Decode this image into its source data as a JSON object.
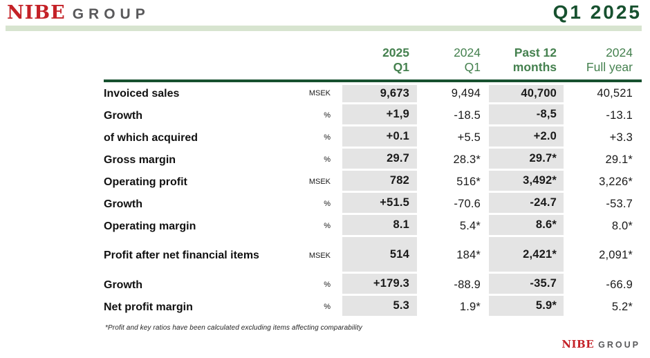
{
  "header": {
    "logo": {
      "brand": "NIBE",
      "suffix": "GROUP"
    },
    "title": "Q1 2025"
  },
  "table": {
    "columns": [
      {
        "line1": "2025",
        "line2": "Q1",
        "highlighted": true
      },
      {
        "line1": "2024",
        "line2": "Q1",
        "highlighted": false
      },
      {
        "line1": "Past 12",
        "line2": "months",
        "highlighted": true
      },
      {
        "line1": "2024",
        "line2": "Full year",
        "highlighted": false
      }
    ],
    "rows": [
      {
        "label": "Invoiced sales",
        "unit": "MSEK",
        "values": [
          "9,673",
          "9,494",
          "40,700",
          "40,521"
        ]
      },
      {
        "label": "Growth",
        "unit": "%",
        "values": [
          "+1,9",
          "-18.5",
          "-8,5",
          "-13.1"
        ]
      },
      {
        "label": "of which acquired",
        "unit": "%",
        "values": [
          "+0.1",
          "+5.5",
          "+2.0",
          "+3.3"
        ]
      },
      {
        "label": "Gross margin",
        "unit": "%",
        "values": [
          "29.7",
          "28.3*",
          "29.7*",
          "29.1*"
        ]
      },
      {
        "label": "Operating profit",
        "unit": "MSEK",
        "values": [
          "782",
          "516*",
          "3,492*",
          "3,226*"
        ]
      },
      {
        "label": "Growth",
        "unit": "%",
        "values": [
          "+51.5",
          "-70.6",
          "-24.7",
          "-53.7"
        ]
      },
      {
        "label": "Operating margin",
        "unit": "%",
        "values": [
          "8.1",
          "5.4*",
          "8.6*",
          "8.0*"
        ]
      },
      {
        "label": "Profit after net financial items",
        "unit": "MSEK",
        "values": [
          "514",
          "184*",
          "2,421*",
          "2,091*"
        ]
      },
      {
        "label": "Growth",
        "unit": "%",
        "values": [
          "+179.3",
          "-88.9",
          "-35.7",
          "-66.9"
        ]
      },
      {
        "label": "Net profit margin",
        "unit": "%",
        "values": [
          "5.3",
          "1.9*",
          "5.9*",
          "5.2*"
        ]
      }
    ]
  },
  "footnote": "*Profit and key ratios have been calculated excluding items affecting comparability",
  "footer": {
    "logo": {
      "brand": "NIBE",
      "suffix": "GROUP"
    }
  },
  "colors": {
    "brand_red": "#c42127",
    "logo_gray": "#59595b",
    "title_dark_green": "#17512f",
    "header_green": "#45814f",
    "light_green_bar": "#d7e4cf",
    "column_shade_gray": "#e4e4e4",
    "text_black": "#1a1a1a"
  }
}
